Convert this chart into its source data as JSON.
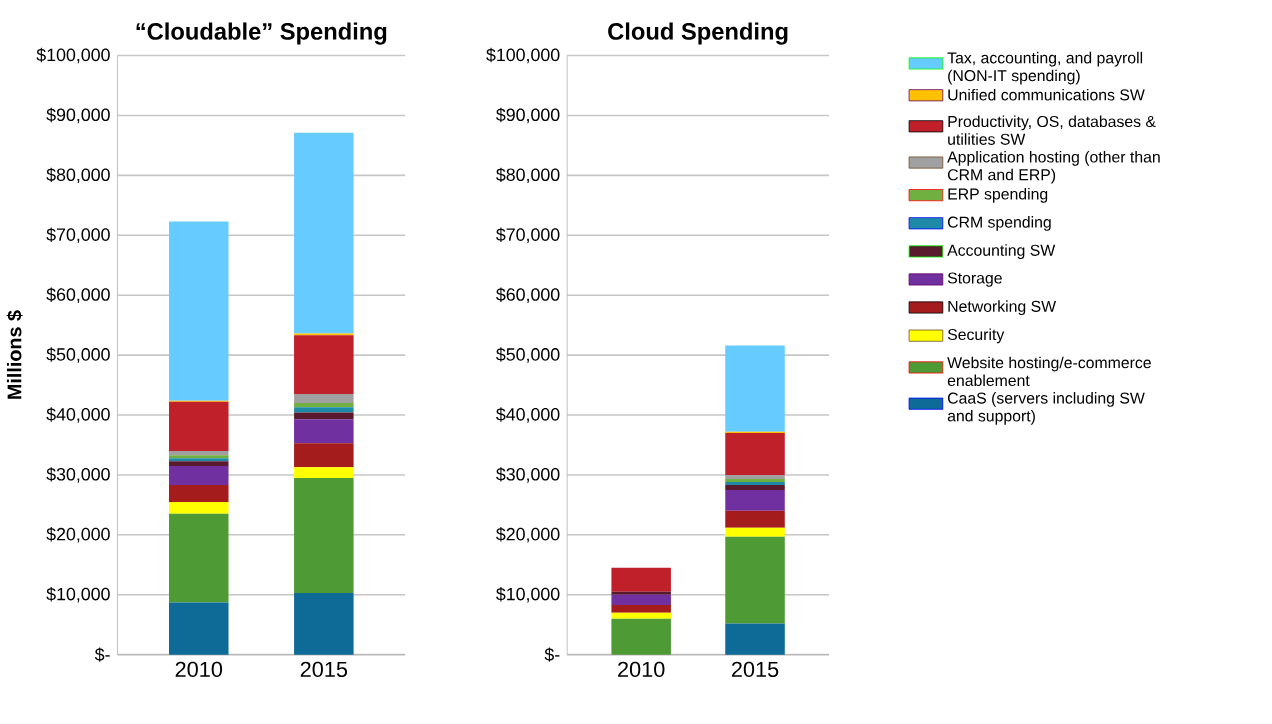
{
  "chart_data": [
    {
      "type": "bar",
      "stacked": true,
      "title": "“Cloudable” Spending",
      "ylabel": "Millions $",
      "categories": [
        "2010",
        "2015"
      ],
      "ylim": [
        0,
        100000
      ],
      "yticks": [
        {
          "value": 0,
          "label": "$-"
        },
        {
          "value": 10000,
          "label": "$10,000"
        },
        {
          "value": 20000,
          "label": "$20,000"
        },
        {
          "value": 30000,
          "label": "$30,000"
        },
        {
          "value": 40000,
          "label": "$40,000"
        },
        {
          "value": 50000,
          "label": "$50,000"
        },
        {
          "value": 60000,
          "label": "$60,000"
        },
        {
          "value": 70000,
          "label": "$70,000"
        },
        {
          "value": 80000,
          "label": "$80,000"
        },
        {
          "value": 90000,
          "label": "$90,000"
        },
        {
          "value": 100000,
          "label": "$100,000"
        }
      ],
      "grid": "y",
      "series": [
        {
          "color": "#0e6a96",
          "values": [
            8700,
            10300
          ]
        },
        {
          "color": "#4e9a34",
          "values": [
            14800,
            19200
          ]
        },
        {
          "color": "#ffff00",
          "values": [
            2000,
            1800
          ]
        },
        {
          "color": "#a41c1c",
          "values": [
            2800,
            4000
          ]
        },
        {
          "color": "#7030a0",
          "values": [
            3200,
            4000
          ]
        },
        {
          "color": "#5a1a2e",
          "values": [
            800,
            1100
          ]
        },
        {
          "color": "#1f8aa8",
          "values": [
            500,
            900
          ]
        },
        {
          "color": "#70b040",
          "values": [
            500,
            700
          ]
        },
        {
          "color": "#a0a0a0",
          "values": [
            700,
            1500
          ]
        },
        {
          "color": "#c0202a",
          "values": [
            8200,
            9800
          ]
        },
        {
          "color": "#ffc000",
          "values": [
            200,
            300
          ]
        },
        {
          "color": "#66ccff",
          "values": [
            29900,
            33500
          ]
        }
      ]
    },
    {
      "type": "bar",
      "stacked": true,
      "title": "Cloud Spending",
      "categories": [
        "2010",
        "2015"
      ],
      "ylim": [
        0,
        100000
      ],
      "yticks": [
        {
          "value": 0,
          "label": "$-"
        },
        {
          "value": 10000,
          "label": "$10,000"
        },
        {
          "value": 20000,
          "label": "$20,000"
        },
        {
          "value": 30000,
          "label": "$30,000"
        },
        {
          "value": 40000,
          "label": "$40,000"
        },
        {
          "value": 50000,
          "label": "$50,000"
        },
        {
          "value": 60000,
          "label": "$60,000"
        },
        {
          "value": 70000,
          "label": "$70,000"
        },
        {
          "value": 80000,
          "label": "$80,000"
        },
        {
          "value": 90000,
          "label": "$90,000"
        },
        {
          "value": 100000,
          "label": "$100,000"
        }
      ],
      "grid": "y",
      "legend": "right",
      "series": [
        {
          "name": "CaaS (servers including SW and support)",
          "color": "#0e6a96",
          "values": [
            0,
            5200
          ]
        },
        {
          "name": "Website hosting/e-commerce enablement",
          "color": "#4e9a34",
          "values": [
            6000,
            14500
          ]
        },
        {
          "name": "Security",
          "color": "#ffff00",
          "values": [
            1000,
            1500
          ]
        },
        {
          "name": "Networking SW",
          "color": "#a41c1c",
          "values": [
            1300,
            2800
          ]
        },
        {
          "name": "Storage",
          "color": "#7030a0",
          "values": [
            1700,
            3500
          ]
        },
        {
          "name": "Accounting SW",
          "color": "#5a1a2e",
          "values": [
            500,
            800
          ]
        },
        {
          "name": "CRM spending",
          "color": "#1f8aa8",
          "values": [
            0,
            500
          ]
        },
        {
          "name": "ERP spending",
          "color": "#70b040",
          "values": [
            0,
            500
          ]
        },
        {
          "name": "Application hosting (other than CRM and ERP)",
          "color": "#a0a0a0",
          "values": [
            0,
            700
          ]
        },
        {
          "name": "Productivity, OS, databases & utilities SW",
          "color": "#c0202a",
          "values": [
            4000,
            7000
          ]
        },
        {
          "name": "Unified communications SW",
          "color": "#ffc000",
          "values": [
            0,
            200
          ]
        },
        {
          "name": "Tax, accounting, and payroll (NON-IT spending)",
          "color": "#66ccff",
          "values": [
            0,
            14400
          ]
        }
      ]
    }
  ]
}
